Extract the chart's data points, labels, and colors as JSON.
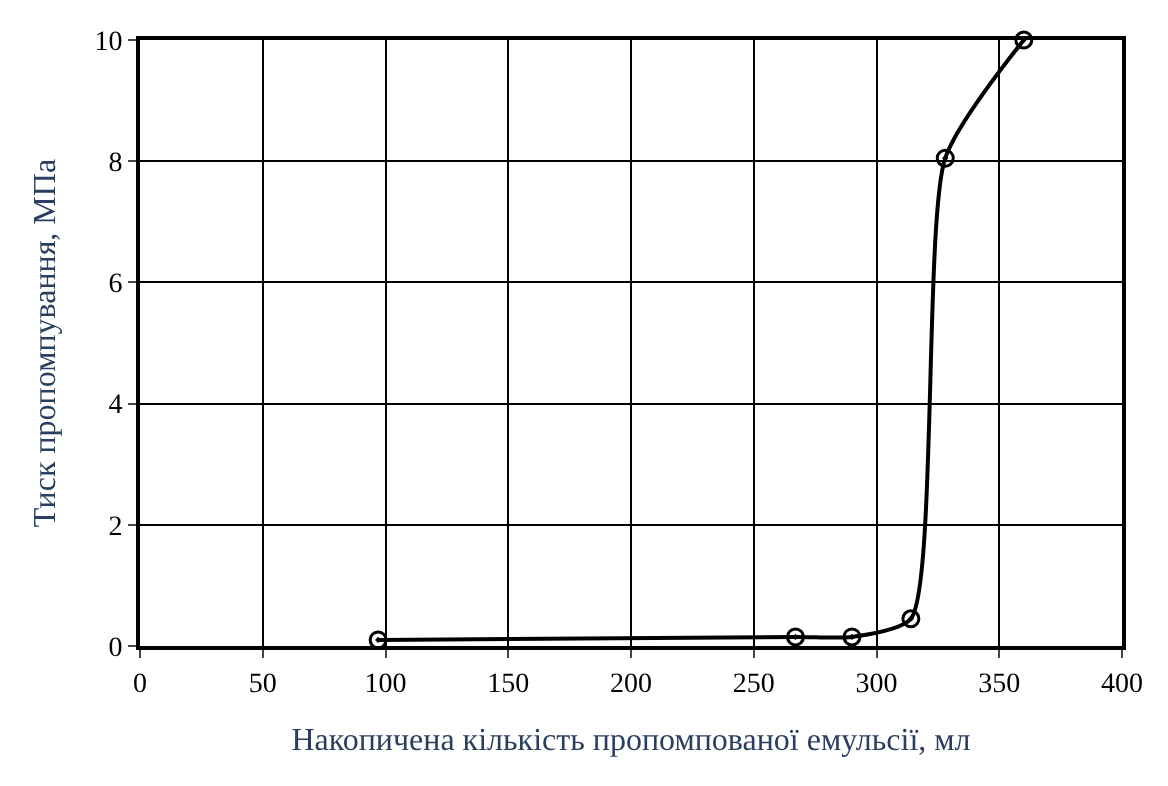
{
  "chart_data": {
    "type": "line",
    "xlabel": "Накопичена кількість пропомпованої емульсії, мл",
    "ylabel": "Тиск пропомпування, МПа",
    "x": [
      97,
      267,
      290,
      314,
      328,
      360
    ],
    "series": [
      {
        "color": "#000000",
        "values": [
          0.1,
          0.15,
          0.15,
          0.45,
          8.05,
          10
        ]
      }
    ],
    "xlim": [
      0,
      400
    ],
    "xticks": [
      0,
      50,
      100,
      150,
      200,
      250,
      300,
      350,
      400
    ],
    "ylim": [
      0,
      10
    ],
    "yticks": [
      0,
      2,
      4,
      6,
      8,
      10
    ],
    "grid": true,
    "marker": "circle",
    "line_style": "solid"
  }
}
